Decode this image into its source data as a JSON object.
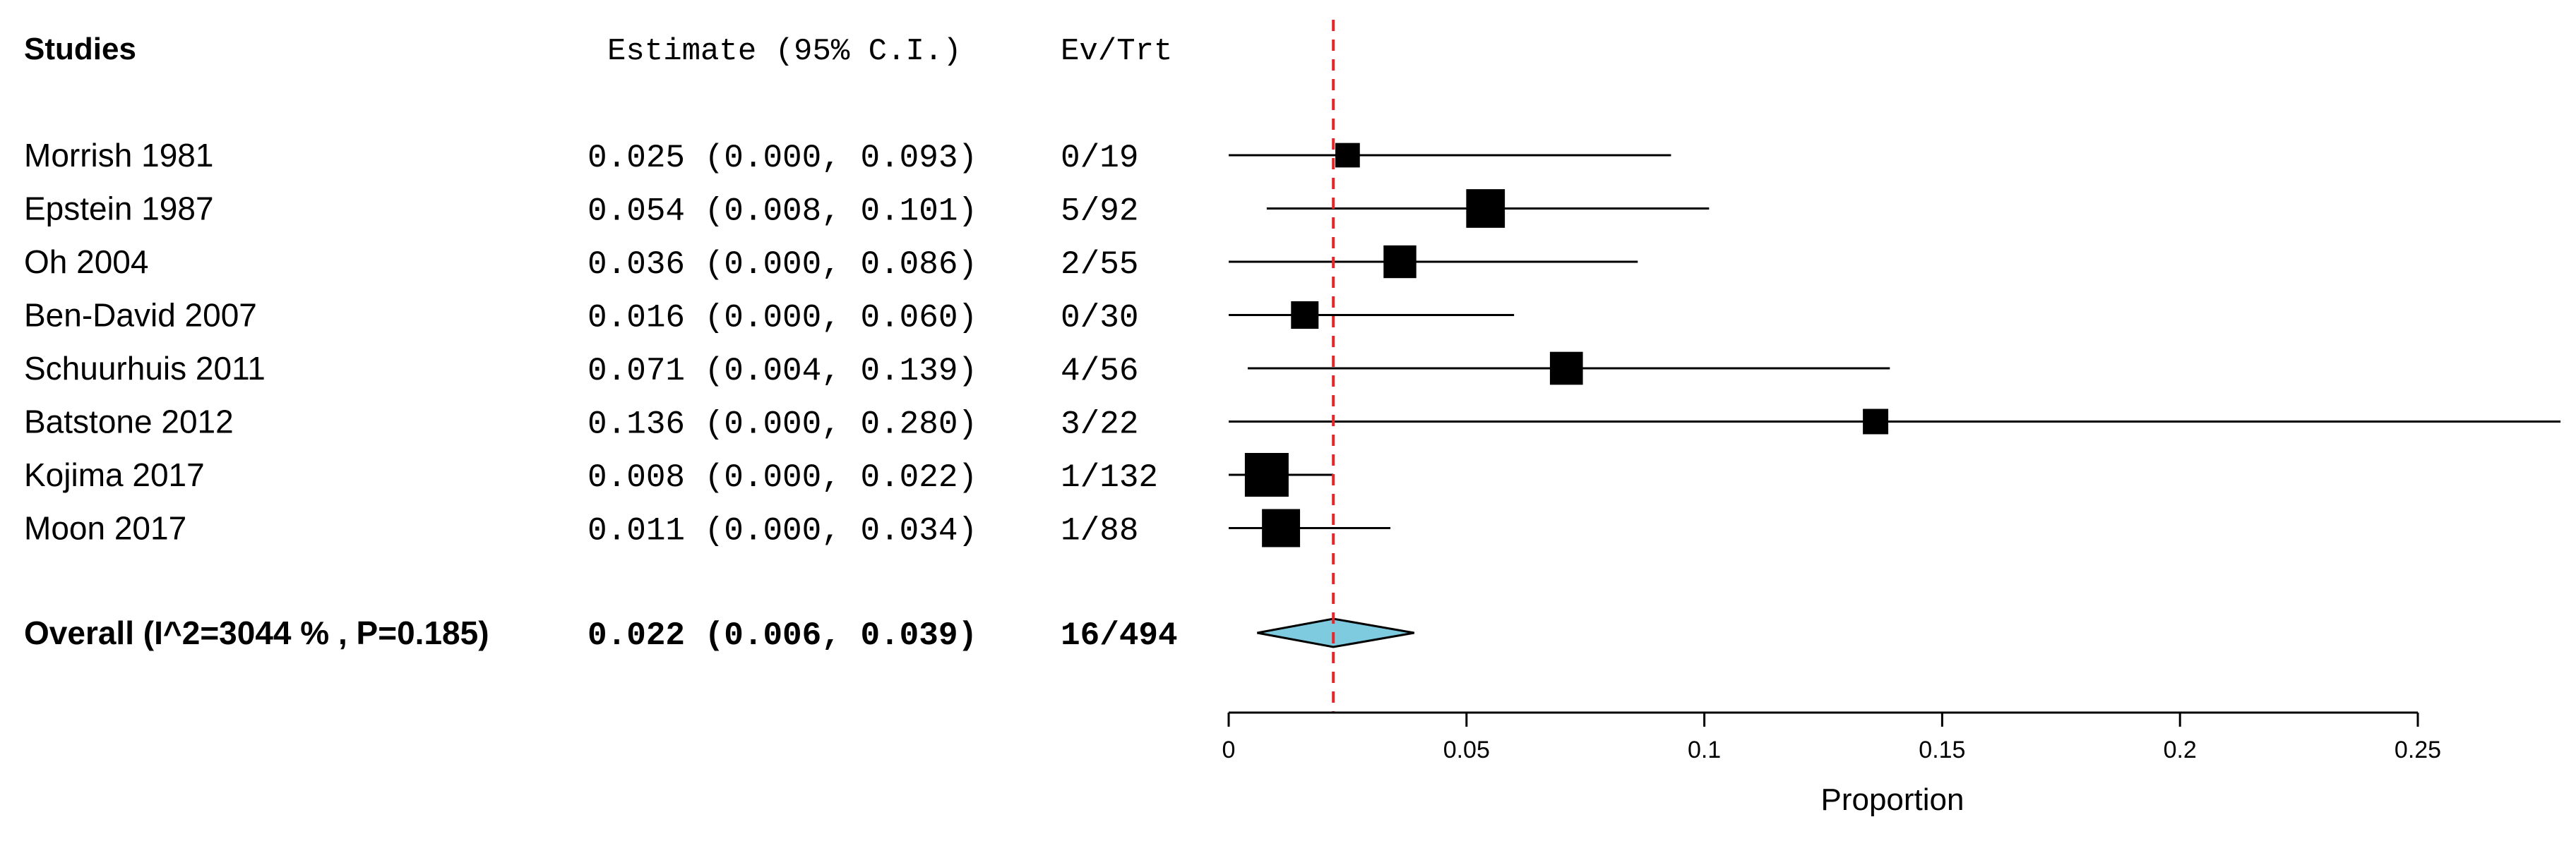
{
  "chart_data": {
    "type": "forest",
    "headers": {
      "studies": "Studies",
      "estimate": "Estimate (95% C.I.)",
      "events": "Ev/Trt"
    },
    "studies": [
      {
        "name": "Morrish 1981",
        "estimate_text": "0.025 (0.000, 0.093)",
        "events_text": "0/19",
        "est": 0.025,
        "lo": 0.0,
        "hi": 0.093,
        "n": 19
      },
      {
        "name": "Epstein 1987",
        "estimate_text": "0.054 (0.008, 0.101)",
        "events_text": "5/92",
        "est": 0.054,
        "lo": 0.008,
        "hi": 0.101,
        "n": 92
      },
      {
        "name": "Oh 2004",
        "estimate_text": "0.036 (0.000, 0.086)",
        "events_text": "2/55",
        "est": 0.036,
        "lo": 0.0,
        "hi": 0.086,
        "n": 55
      },
      {
        "name": "Ben-David 2007",
        "estimate_text": "0.016 (0.000, 0.060)",
        "events_text": "0/30",
        "est": 0.016,
        "lo": 0.0,
        "hi": 0.06,
        "n": 30
      },
      {
        "name": "Schuurhuis 2011",
        "estimate_text": "0.071 (0.004, 0.139)",
        "events_text": "4/56",
        "est": 0.071,
        "lo": 0.004,
        "hi": 0.139,
        "n": 56
      },
      {
        "name": "Batstone 2012",
        "estimate_text": "0.136 (0.000, 0.280)",
        "events_text": "3/22",
        "est": 0.136,
        "lo": 0.0,
        "hi": 0.28,
        "n": 22
      },
      {
        "name": "Kojima 2017",
        "estimate_text": "0.008 (0.000, 0.022)",
        "events_text": "1/132",
        "est": 0.008,
        "lo": 0.0,
        "hi": 0.022,
        "n": 132
      },
      {
        "name": "Moon 2017",
        "estimate_text": "0.011 (0.000, 0.034)",
        "events_text": "1/88",
        "est": 0.011,
        "lo": 0.0,
        "hi": 0.034,
        "n": 88
      }
    ],
    "overall": {
      "label": "Overall (I^2=3044 % , P=0.185)",
      "estimate_text": "0.022 (0.006, 0.039)",
      "events_text": "16/494",
      "est": 0.022,
      "lo": 0.006,
      "hi": 0.039
    },
    "reference_line": 0.022,
    "xlim": [
      0,
      0.25
    ],
    "xticks": [
      0,
      0.05,
      0.1,
      0.15,
      0.2,
      0.25
    ],
    "xtick_labels": [
      "0",
      "0.05",
      "0.1",
      "0.15",
      "0.2",
      "0.25"
    ],
    "xlabel": "Proportion",
    "colors": {
      "diamond": "#7ecbe0",
      "reference": "#e8262a",
      "ink": "#000000"
    }
  }
}
